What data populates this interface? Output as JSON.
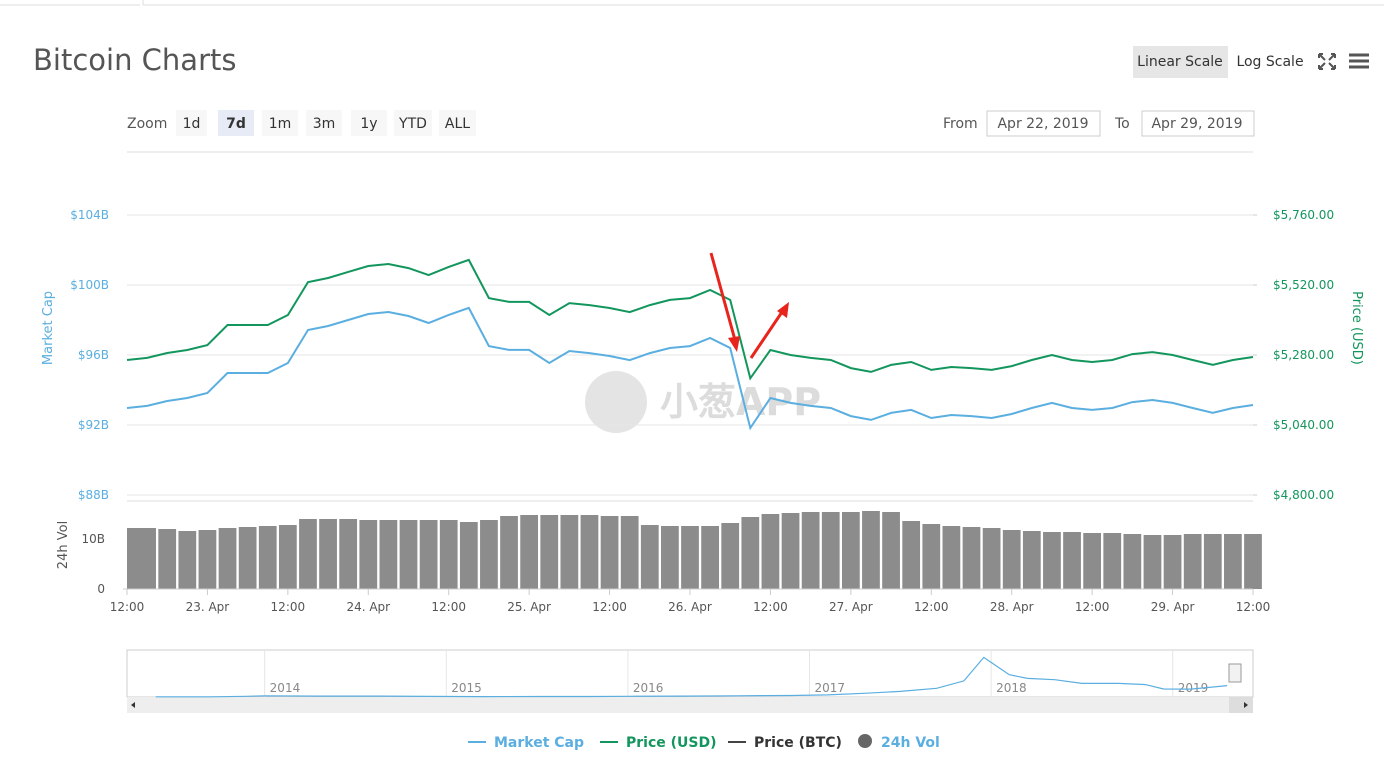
{
  "controls": {
    "title": "Bitcoin Charts",
    "scale_buttons": [
      "Linear Scale",
      "Log Scale"
    ],
    "zoom_label": "Zoom",
    "zoom_buttons": [
      "1d",
      "7d",
      "1m",
      "3m",
      "1y",
      "YTD",
      "ALL"
    ],
    "zoom_selected": 1,
    "from_label": "From",
    "from_date": "Apr 22, 2019",
    "to_label": "To",
    "to_date": "Apr 29, 2019",
    "watermark": "小葱APP"
  },
  "chart_data": {
    "type": "line",
    "y_label": "Market Cap",
    "y2_label": "Price (USD)",
    "x": [
      0,
      3,
      6,
      9,
      12,
      15,
      18,
      21,
      24,
      27,
      30,
      33,
      36,
      39,
      42,
      45,
      48,
      51,
      54,
      57,
      60,
      63,
      66,
      69,
      72,
      75,
      78,
      81,
      84,
      87,
      90,
      93,
      96,
      99,
      102,
      105,
      108,
      111,
      114,
      117,
      120,
      123,
      126,
      129,
      132,
      135,
      138,
      141,
      144,
      147,
      150,
      153,
      156,
      159,
      162,
      165,
      168
    ],
    "xlim": [
      0,
      168
    ],
    "xticks": [
      {
        "value": 0,
        "label": "12:00"
      },
      {
        "value": 12,
        "label": "23. Apr"
      },
      {
        "value": 24,
        "label": "12:00"
      },
      {
        "value": 36,
        "label": "24. Apr"
      },
      {
        "value": 48,
        "label": "12:00"
      },
      {
        "value": 60,
        "label": "25. Apr"
      },
      {
        "value": 72,
        "label": "12:00"
      },
      {
        "value": 84,
        "label": "26. Apr"
      },
      {
        "value": 96,
        "label": "12:00"
      },
      {
        "value": 108,
        "label": "27. Apr"
      },
      {
        "value": 120,
        "label": "12:00"
      },
      {
        "value": 132,
        "label": "28. Apr"
      },
      {
        "value": 144,
        "label": "12:00"
      },
      {
        "value": 156,
        "label": "29. Apr"
      },
      {
        "value": 168,
        "label": "12:00"
      }
    ],
    "ylim": [
      88,
      107.6
    ],
    "yticks": [
      {
        "value": 88,
        "label": "$88B"
      },
      {
        "value": 92,
        "label": "$92B"
      },
      {
        "value": 96,
        "label": "$96B"
      },
      {
        "value": 100,
        "label": "$100B"
      },
      {
        "value": 104,
        "label": "$104B"
      }
    ],
    "y2lim": [
      4800,
      5976
    ],
    "y2ticks": [
      {
        "value": 4800,
        "label": "$4,800.00"
      },
      {
        "value": 5040,
        "label": "$5,040.00"
      },
      {
        "value": 5280,
        "label": "$5,280.00"
      },
      {
        "value": 5520,
        "label": "$5,520.00"
      },
      {
        "value": 5760,
        "label": "$5,760.00"
      }
    ],
    "grid": true,
    "series": [
      {
        "name": "Market Cap",
        "color": "#5aaee0",
        "axis": "y",
        "values": [
          92.97,
          93.09,
          93.37,
          93.54,
          93.83,
          94.97,
          94.97,
          94.97,
          95.54,
          97.43,
          97.66,
          98.0,
          98.34,
          98.46,
          98.23,
          97.83,
          98.29,
          98.69,
          96.51,
          96.29,
          96.29,
          95.54,
          96.23,
          96.11,
          95.94,
          95.71,
          96.11,
          96.4,
          96.51,
          96.97,
          96.4,
          91.83,
          93.54,
          93.26,
          93.09,
          92.97,
          92.51,
          92.29,
          92.69,
          92.86,
          92.4,
          92.57,
          92.51,
          92.4,
          92.63,
          92.97,
          93.26,
          92.97,
          92.86,
          92.97,
          93.31,
          93.43,
          93.26,
          92.97,
          92.69,
          92.97,
          93.14
        ]
      },
      {
        "name": "Price (USD)",
        "color": "#13965d",
        "axis": "y2",
        "values": [
          5263,
          5270,
          5287,
          5297,
          5314,
          5383,
          5383,
          5383,
          5417,
          5530,
          5544,
          5565,
          5585,
          5592,
          5578,
          5554,
          5582,
          5606,
          5475,
          5462,
          5462,
          5417,
          5458,
          5451,
          5441,
          5427,
          5451,
          5469,
          5475,
          5503,
          5469,
          5200,
          5297,
          5280,
          5270,
          5263,
          5235,
          5222,
          5246,
          5256,
          5229,
          5239,
          5235,
          5229,
          5242,
          5263,
          5280,
          5263,
          5256,
          5263,
          5283,
          5290,
          5280,
          5263,
          5246,
          5263,
          5273
        ]
      },
      {
        "name": "Price (BTC)",
        "color": "#444444",
        "visible": false
      }
    ],
    "volume": {
      "name": "24h Vol",
      "label": "24h Vol",
      "color": "#8c8c8c",
      "ylim": [
        0,
        18
      ],
      "yticks": [
        0,
        {
          "value": 10,
          "label": "10B"
        }
      ],
      "values": [
        12.2,
        12.2,
        12.0,
        11.6,
        11.8,
        12.2,
        12.4,
        12.6,
        12.8,
        14.0,
        14.0,
        14.0,
        13.8,
        13.8,
        13.8,
        13.8,
        13.8,
        13.4,
        13.8,
        14.6,
        14.8,
        14.8,
        14.8,
        14.8,
        14.6,
        14.6,
        12.8,
        12.6,
        12.6,
        12.6,
        13.2,
        14.4,
        15.0,
        15.2,
        15.4,
        15.4,
        15.4,
        15.6,
        15.4,
        13.6,
        13.0,
        12.6,
        12.4,
        12.2,
        11.8,
        11.6,
        11.4,
        11.4,
        11.2,
        11.2,
        11.0,
        10.8,
        10.8,
        11.0,
        11.0,
        11.0,
        11.0
      ]
    },
    "navigator": {
      "x": [
        2013.4,
        2013.7,
        2013.9,
        2014.0,
        2014.3,
        2014.6,
        2014.9,
        2015.2,
        2015.5,
        2015.8,
        2016.0,
        2016.3,
        2016.6,
        2016.9,
        2017.1,
        2017.3,
        2017.5,
        2017.7,
        2017.85,
        2017.96,
        2018.0,
        2018.1,
        2018.2,
        2018.35,
        2018.5,
        2018.7,
        2018.85,
        2018.95,
        2019.1,
        2019.3
      ],
      "values": [
        1.5,
        2,
        6,
        10,
        7,
        7,
        5,
        3.5,
        4,
        4,
        6,
        7,
        10,
        12,
        17,
        30,
        45,
        70,
        130,
        320,
        280,
        180,
        150,
        140,
        110,
        110,
        100,
        65,
        64,
        92
      ],
      "xlim": [
        2013.33,
        2019.31
      ],
      "ylim": [
        0,
        380
      ],
      "xticks": [
        2014,
        2015,
        2016,
        2017,
        2018,
        2019
      ]
    }
  }
}
